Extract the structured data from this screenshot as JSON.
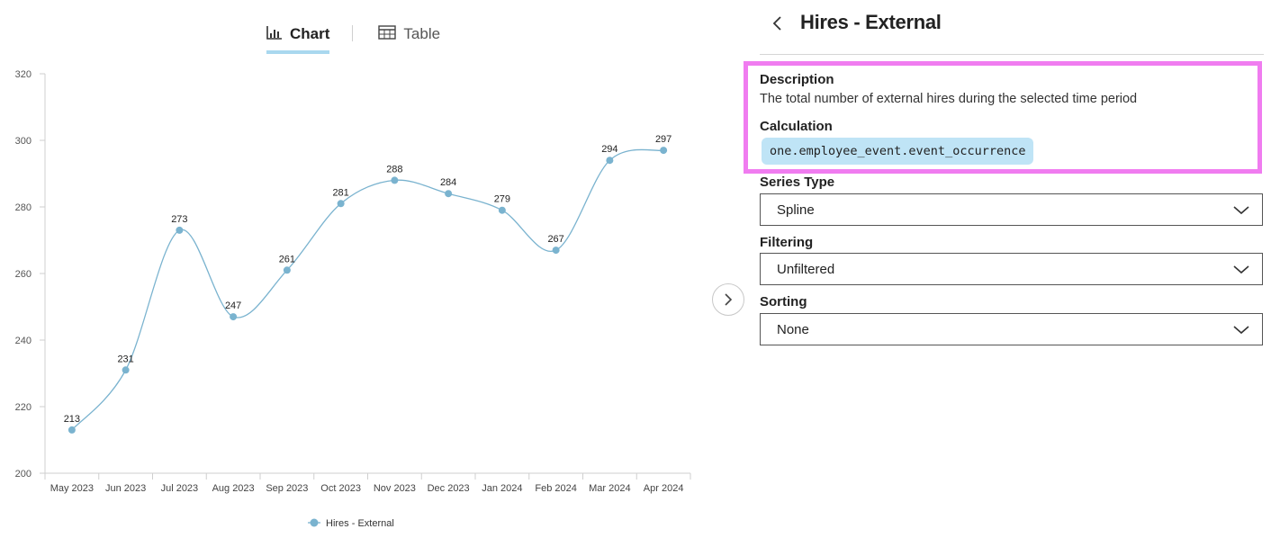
{
  "view_tabs": {
    "chart_label": "Chart",
    "table_label": "Table",
    "active": "Chart"
  },
  "panel": {
    "title": "Hires - External",
    "description_label": "Description",
    "description": "The total number of external hires during the selected time period",
    "calculation_label": "Calculation",
    "calculation": "one.employee_event.event_occurrence",
    "series_type_label": "Series Type",
    "series_type_value": "Spline",
    "filtering_label": "Filtering",
    "filtering_value": "Unfiltered",
    "sorting_label": "Sorting",
    "sorting_value": "None"
  },
  "colors": {
    "series": "#7ab3cf",
    "tab_underline": "#a9d8ef",
    "highlight": "#f07cf0",
    "code_bg": "#bfe4f6"
  },
  "chart_data": {
    "type": "line",
    "smoothing": "spline",
    "categories": [
      "May 2023",
      "Jun 2023",
      "Jul 2023",
      "Aug 2023",
      "Sep 2023",
      "Oct 2023",
      "Nov 2023",
      "Dec 2023",
      "Jan 2024",
      "Feb 2024",
      "Mar 2024",
      "Apr 2024"
    ],
    "series": [
      {
        "name": "Hires - External",
        "values": [
          213,
          231,
          273,
          247,
          261,
          281,
          288,
          284,
          279,
          267,
          294,
          297
        ]
      }
    ],
    "ylim": [
      200,
      320
    ],
    "yticks": [
      200,
      220,
      240,
      260,
      280,
      300,
      320
    ],
    "data_labels": true,
    "grid": false,
    "legend": "bottom-center"
  }
}
